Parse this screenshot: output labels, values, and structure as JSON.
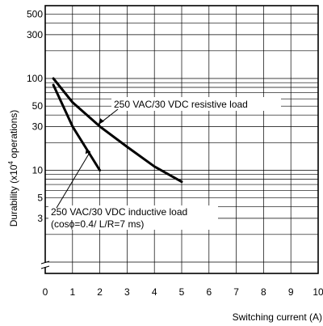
{
  "chart_data": {
    "type": "line",
    "xlabel": "Switching current (A)",
    "ylabel_main": "Durability (x10",
    "ylabel_sup": "4",
    "ylabel_tail": " operations)",
    "x_scale": "linear",
    "y_scale": "log",
    "xlim": [
      0,
      10
    ],
    "ylim": [
      0.1,
      500
    ],
    "grid": true,
    "x_ticks": [
      "0",
      "1",
      "2",
      "3",
      "4",
      "5",
      "6",
      "7",
      "8",
      "9",
      "10"
    ],
    "y_ticks": [
      {
        "value": 500,
        "label": "500"
      },
      {
        "value": 300,
        "label": "300"
      },
      {
        "value": 100,
        "label": "100"
      },
      {
        "value": 50,
        "label": "50"
      },
      {
        "value": 30,
        "label": "30"
      },
      {
        "value": 10,
        "label": "10"
      },
      {
        "value": 5,
        "label": "5"
      },
      {
        "value": 3,
        "label": "3"
      }
    ],
    "minor_y_gridlines": [
      1,
      2,
      3,
      4,
      5,
      6,
      7,
      8,
      9,
      10,
      20,
      30,
      40,
      50,
      60,
      70,
      80,
      90,
      100,
      200,
      300,
      400,
      500
    ],
    "axis_break": "y",
    "series": [
      {
        "name": "250 VAC/30 VDC resistive load",
        "x": [
          0.3,
          1,
          2,
          3,
          4,
          5
        ],
        "y": [
          100,
          55,
          30,
          18,
          11,
          7.5
        ]
      },
      {
        "name": "250 VAC/30 VDC inductive load",
        "name_line2": "(cosϕ=0.4/ L/R=7 ms)",
        "x": [
          0.3,
          1,
          2
        ],
        "y": [
          85,
          30,
          10
        ]
      }
    ]
  }
}
